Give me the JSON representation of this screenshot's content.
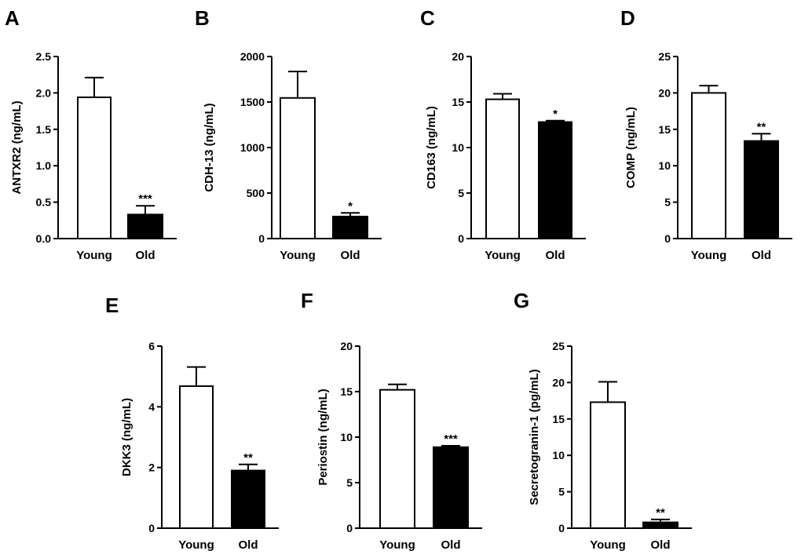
{
  "chart_data": [
    {
      "panel": "A",
      "type": "bar",
      "ylabel": "ANTXR2 (ng/mL)",
      "ylim": [
        0,
        2.5
      ],
      "yticks": [
        "0.0",
        "0.5",
        "1.0",
        "1.5",
        "2.0",
        "2.5"
      ],
      "ytick_values": [
        0,
        0.5,
        1.0,
        1.5,
        2.0,
        2.5
      ],
      "categories": [
        "Young",
        "Old"
      ],
      "values": [
        1.94,
        0.33
      ],
      "errors": [
        0.27,
        0.12
      ],
      "significance": [
        "",
        "***"
      ],
      "bar_colors": [
        "#ffffff",
        "#000000"
      ]
    },
    {
      "panel": "B",
      "type": "bar",
      "ylabel": "CDH-13 (ng/mL)",
      "ylim": [
        0,
        2000
      ],
      "yticks": [
        "0",
        "500",
        "1000",
        "1500",
        "2000"
      ],
      "ytick_values": [
        0,
        500,
        1000,
        1500,
        2000
      ],
      "categories": [
        "Young",
        "Old"
      ],
      "values": [
        1545,
        242
      ],
      "errors": [
        290,
        40
      ],
      "significance": [
        "",
        "*"
      ],
      "bar_colors": [
        "#ffffff",
        "#000000"
      ]
    },
    {
      "panel": "C",
      "type": "bar",
      "ylabel": "CD163 (ng/mL)",
      "ylim": [
        0,
        20
      ],
      "yticks": [
        "0",
        "5",
        "10",
        "15",
        "20"
      ],
      "ytick_values": [
        0,
        5,
        10,
        15,
        20
      ],
      "categories": [
        "Young",
        "Old"
      ],
      "values": [
        15.3,
        12.8
      ],
      "errors": [
        0.6,
        0.15
      ],
      "significance": [
        "",
        "*"
      ],
      "bar_colors": [
        "#ffffff",
        "#000000"
      ]
    },
    {
      "panel": "D",
      "type": "bar",
      "ylabel": "COMP (ng/mL)",
      "ylim": [
        0,
        25
      ],
      "yticks": [
        "0",
        "5",
        "10",
        "15",
        "20",
        "25"
      ],
      "ytick_values": [
        0,
        5,
        10,
        15,
        20,
        25
      ],
      "categories": [
        "Young",
        "Old"
      ],
      "values": [
        20.0,
        13.4
      ],
      "errors": [
        1.0,
        1.0
      ],
      "significance": [
        "",
        "**"
      ],
      "bar_colors": [
        "#ffffff",
        "#000000"
      ]
    },
    {
      "panel": "E",
      "type": "bar",
      "ylabel": "DKK3 (ng/mL)",
      "ylim": [
        0,
        6
      ],
      "yticks": [
        "0",
        "2",
        "4",
        "6"
      ],
      "ytick_values": [
        0,
        2,
        4,
        6
      ],
      "categories": [
        "Young",
        "Old"
      ],
      "values": [
        4.68,
        1.9
      ],
      "errors": [
        0.63,
        0.2
      ],
      "significance": [
        "",
        "**"
      ],
      "bar_colors": [
        "#ffffff",
        "#000000"
      ]
    },
    {
      "panel": "F",
      "type": "bar",
      "ylabel": "Periostin (ng/mL)",
      "ylim": [
        0,
        20
      ],
      "yticks": [
        "0",
        "5",
        "10",
        "15",
        "20"
      ],
      "ytick_values": [
        0,
        5,
        10,
        15,
        20
      ],
      "categories": [
        "Young",
        "Old"
      ],
      "values": [
        15.2,
        8.9
      ],
      "errors": [
        0.6,
        0.15
      ],
      "significance": [
        "",
        "***"
      ],
      "bar_colors": [
        "#ffffff",
        "#000000"
      ]
    },
    {
      "panel": "G",
      "type": "bar",
      "ylabel": "Secretogranin-1 (pg/mL)",
      "ylim": [
        0,
        25
      ],
      "yticks": [
        "0",
        "5",
        "10",
        "15",
        "20",
        "25"
      ],
      "ytick_values": [
        0,
        5,
        10,
        15,
        20,
        25
      ],
      "categories": [
        "Young",
        "Old"
      ],
      "values": [
        17.3,
        0.8
      ],
      "errors": [
        2.8,
        0.4
      ],
      "significance": [
        "",
        "**"
      ],
      "bar_colors": [
        "#ffffff",
        "#000000"
      ]
    }
  ]
}
